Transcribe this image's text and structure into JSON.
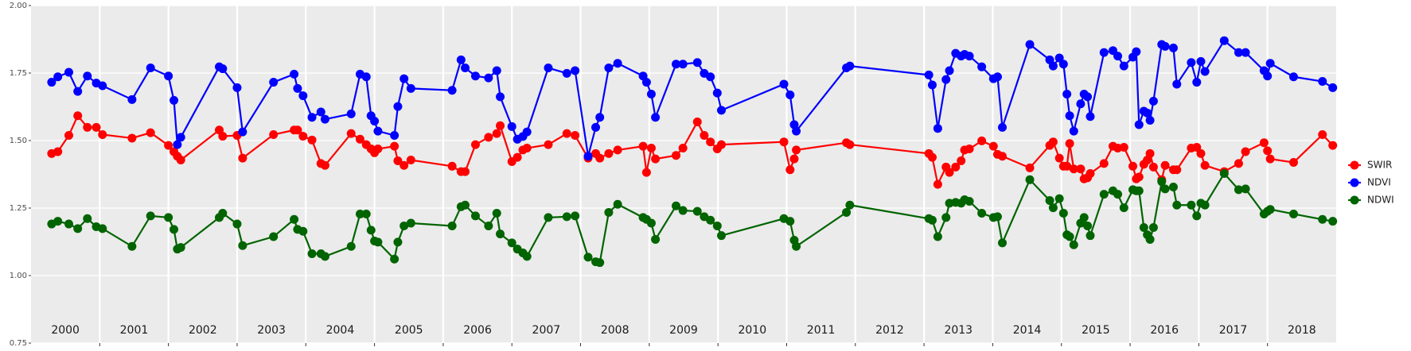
{
  "chart_data": {
    "type": "line",
    "x": [
      2000.3,
      2000.39,
      2000.55,
      2000.68,
      2000.82,
      2000.95,
      2001.04,
      2001.47,
      2001.74,
      2002.0,
      2002.08,
      2002.13,
      2002.18,
      2002.74,
      2002.79,
      2003.0,
      2003.08,
      2003.53,
      2003.83,
      2003.88,
      2003.96,
      2004.09,
      2004.22,
      2004.28,
      2004.66,
      2004.79,
      2004.88,
      2004.95,
      2005.0,
      2005.05,
      2005.29,
      2005.34,
      2005.43,
      2005.53,
      2006.13,
      2006.26,
      2006.32,
      2006.47,
      2006.66,
      2006.78,
      2006.83,
      2007.0,
      2007.08,
      2007.16,
      2007.22,
      2007.53,
      2007.8,
      2007.92,
      2008.11,
      2008.22,
      2008.28,
      2008.41,
      2008.54,
      2008.91,
      2008.96,
      2009.03,
      2009.09,
      2009.39,
      2009.49,
      2009.7,
      2009.8,
      2009.89,
      2009.99,
      2010.05,
      2010.96,
      2011.05,
      2011.11,
      2011.14,
      2011.87,
      2011.92,
      2013.07,
      2013.12,
      2013.2,
      2013.32,
      2013.37,
      2013.46,
      2013.54,
      2013.59,
      2013.66,
      2013.84,
      2014.01,
      2014.07,
      2014.14,
      2014.54,
      2014.83,
      2014.88,
      2014.97,
      2015.03,
      2015.08,
      2015.12,
      2015.18,
      2015.28,
      2015.33,
      2015.38,
      2015.42,
      2015.62,
      2015.75,
      2015.82,
      2015.91,
      2016.04,
      2016.09,
      2016.13,
      2016.2,
      2016.25,
      2016.29,
      2016.34,
      2016.46,
      2016.51,
      2016.63,
      2016.68,
      2016.89,
      2016.97,
      2017.03,
      2017.09,
      2017.37,
      2017.58,
      2017.68,
      2017.95,
      2018.0,
      2018.04,
      2018.38,
      2018.8,
      2018.95
    ],
    "series": [
      {
        "name": "SWIR",
        "color": "#ff0000",
        "values": [
          1.452,
          1.459,
          1.519,
          1.592,
          1.549,
          1.549,
          1.522,
          1.509,
          1.529,
          1.482,
          1.459,
          1.442,
          1.428,
          1.539,
          1.516,
          1.519,
          1.435,
          1.522,
          1.539,
          1.539,
          1.516,
          1.502,
          1.415,
          1.408,
          1.526,
          1.505,
          1.485,
          1.469,
          1.455,
          1.469,
          1.479,
          1.425,
          1.408,
          1.428,
          1.405,
          1.385,
          1.385,
          1.485,
          1.512,
          1.526,
          1.555,
          1.422,
          1.438,
          1.465,
          1.472,
          1.485,
          1.526,
          1.519,
          1.435,
          1.452,
          1.435,
          1.452,
          1.465,
          1.479,
          1.382,
          1.472,
          1.432,
          1.445,
          1.472,
          1.569,
          1.519,
          1.495,
          1.469,
          1.485,
          1.495,
          1.392,
          1.432,
          1.465,
          1.492,
          1.485,
          1.452,
          1.438,
          1.338,
          1.402,
          1.382,
          1.402,
          1.425,
          1.465,
          1.469,
          1.499,
          1.479,
          1.449,
          1.442,
          1.399,
          1.482,
          1.495,
          1.435,
          1.405,
          1.405,
          1.489,
          1.395,
          1.395,
          1.358,
          1.362,
          1.378,
          1.415,
          1.479,
          1.472,
          1.475,
          1.405,
          1.358,
          1.365,
          1.412,
          1.428,
          1.452,
          1.402,
          1.355,
          1.408,
          1.392,
          1.392,
          1.472,
          1.475,
          1.452,
          1.408,
          1.385,
          1.415,
          1.459,
          1.492,
          1.462,
          1.432,
          1.419,
          1.522,
          1.482
        ]
      },
      {
        "name": "NDVI",
        "color": "#0000ff",
        "values": [
          1.716,
          1.736,
          1.753,
          1.682,
          1.739,
          1.713,
          1.703,
          1.652,
          1.769,
          1.739,
          1.649,
          1.485,
          1.512,
          1.773,
          1.766,
          1.696,
          1.532,
          1.716,
          1.746,
          1.693,
          1.666,
          1.586,
          1.606,
          1.579,
          1.599,
          1.746,
          1.736,
          1.592,
          1.572,
          1.535,
          1.519,
          1.626,
          1.729,
          1.693,
          1.686,
          1.799,
          1.769,
          1.739,
          1.732,
          1.759,
          1.662,
          1.552,
          1.505,
          1.515,
          1.532,
          1.769,
          1.749,
          1.759,
          1.442,
          1.549,
          1.586,
          1.769,
          1.786,
          1.739,
          1.716,
          1.672,
          1.586,
          1.783,
          1.783,
          1.789,
          1.749,
          1.736,
          1.676,
          1.612,
          1.709,
          1.669,
          1.559,
          1.535,
          1.769,
          1.776,
          1.743,
          1.706,
          1.545,
          1.726,
          1.759,
          1.823,
          1.813,
          1.819,
          1.813,
          1.773,
          1.729,
          1.736,
          1.549,
          1.856,
          1.799,
          1.776,
          1.806,
          1.783,
          1.672,
          1.592,
          1.535,
          1.636,
          1.672,
          1.662,
          1.589,
          1.826,
          1.833,
          1.813,
          1.776,
          1.809,
          1.829,
          1.559,
          1.609,
          1.602,
          1.575,
          1.646,
          1.856,
          1.849,
          1.843,
          1.709,
          1.789,
          1.716,
          1.793,
          1.756,
          1.87,
          1.826,
          1.826,
          1.759,
          1.739,
          1.786,
          1.736,
          1.719,
          1.696
        ]
      },
      {
        "name": "NDWI",
        "color": "#006400",
        "values": [
          1.191,
          1.201,
          1.191,
          1.174,
          1.211,
          1.181,
          1.174,
          1.108,
          1.221,
          1.215,
          1.171,
          1.098,
          1.104,
          1.215,
          1.231,
          1.191,
          1.111,
          1.144,
          1.208,
          1.171,
          1.164,
          1.081,
          1.081,
          1.071,
          1.108,
          1.228,
          1.228,
          1.168,
          1.128,
          1.124,
          1.061,
          1.124,
          1.184,
          1.194,
          1.184,
          1.255,
          1.261,
          1.221,
          1.184,
          1.231,
          1.154,
          1.121,
          1.098,
          1.084,
          1.071,
          1.215,
          1.218,
          1.221,
          1.068,
          1.051,
          1.048,
          1.234,
          1.264,
          1.215,
          1.208,
          1.194,
          1.134,
          1.258,
          1.241,
          1.238,
          1.218,
          1.205,
          1.184,
          1.148,
          1.211,
          1.201,
          1.131,
          1.108,
          1.234,
          1.261,
          1.211,
          1.205,
          1.144,
          1.215,
          1.268,
          1.271,
          1.268,
          1.281,
          1.275,
          1.231,
          1.215,
          1.218,
          1.121,
          1.355,
          1.278,
          1.251,
          1.285,
          1.231,
          1.151,
          1.144,
          1.114,
          1.194,
          1.215,
          1.184,
          1.148,
          1.301,
          1.314,
          1.301,
          1.251,
          1.318,
          1.314,
          1.314,
          1.178,
          1.151,
          1.134,
          1.178,
          1.348,
          1.321,
          1.328,
          1.261,
          1.261,
          1.221,
          1.268,
          1.261,
          1.378,
          1.318,
          1.321,
          1.228,
          1.238,
          1.245,
          1.228,
          1.208,
          1.201
        ]
      }
    ],
    "xlim": [
      2000,
      2019
    ],
    "xticks": [
      {
        "value": 2000.5,
        "label": "2000"
      },
      {
        "value": 2001.5,
        "label": "2001"
      },
      {
        "value": 2002.5,
        "label": "2002"
      },
      {
        "value": 2003.5,
        "label": "2003"
      },
      {
        "value": 2004.5,
        "label": "2004"
      },
      {
        "value": 2005.5,
        "label": "2005"
      },
      {
        "value": 2006.5,
        "label": "2006"
      },
      {
        "value": 2007.5,
        "label": "2007"
      },
      {
        "value": 2008.5,
        "label": "2008"
      },
      {
        "value": 2009.5,
        "label": "2009"
      },
      {
        "value": 2010.5,
        "label": "2010"
      },
      {
        "value": 2011.5,
        "label": "2011"
      },
      {
        "value": 2012.5,
        "label": "2012"
      },
      {
        "value": 2013.5,
        "label": "2013"
      },
      {
        "value": 2014.5,
        "label": "2014"
      },
      {
        "value": 2015.5,
        "label": "2015"
      },
      {
        "value": 2016.5,
        "label": "2016"
      },
      {
        "value": 2017.5,
        "label": "2017"
      },
      {
        "value": 2018.5,
        "label": "2018"
      }
    ],
    "xgrid": [
      2001,
      2002,
      2003,
      2004,
      2005,
      2006,
      2007,
      2008,
      2009,
      2010,
      2011,
      2012,
      2013,
      2014,
      2015,
      2016,
      2017,
      2018
    ],
    "ylim": [
      0.75,
      2.0
    ],
    "yticks": [
      {
        "value": 0.75,
        "label": "0.75"
      },
      {
        "value": 1.0,
        "label": "1.00"
      },
      {
        "value": 1.25,
        "label": "1.25"
      },
      {
        "value": 1.5,
        "label": "1.50"
      },
      {
        "value": 1.75,
        "label": "1.75"
      },
      {
        "value": 2.0,
        "label": "2.00"
      }
    ],
    "grid": true,
    "legend": "right"
  }
}
